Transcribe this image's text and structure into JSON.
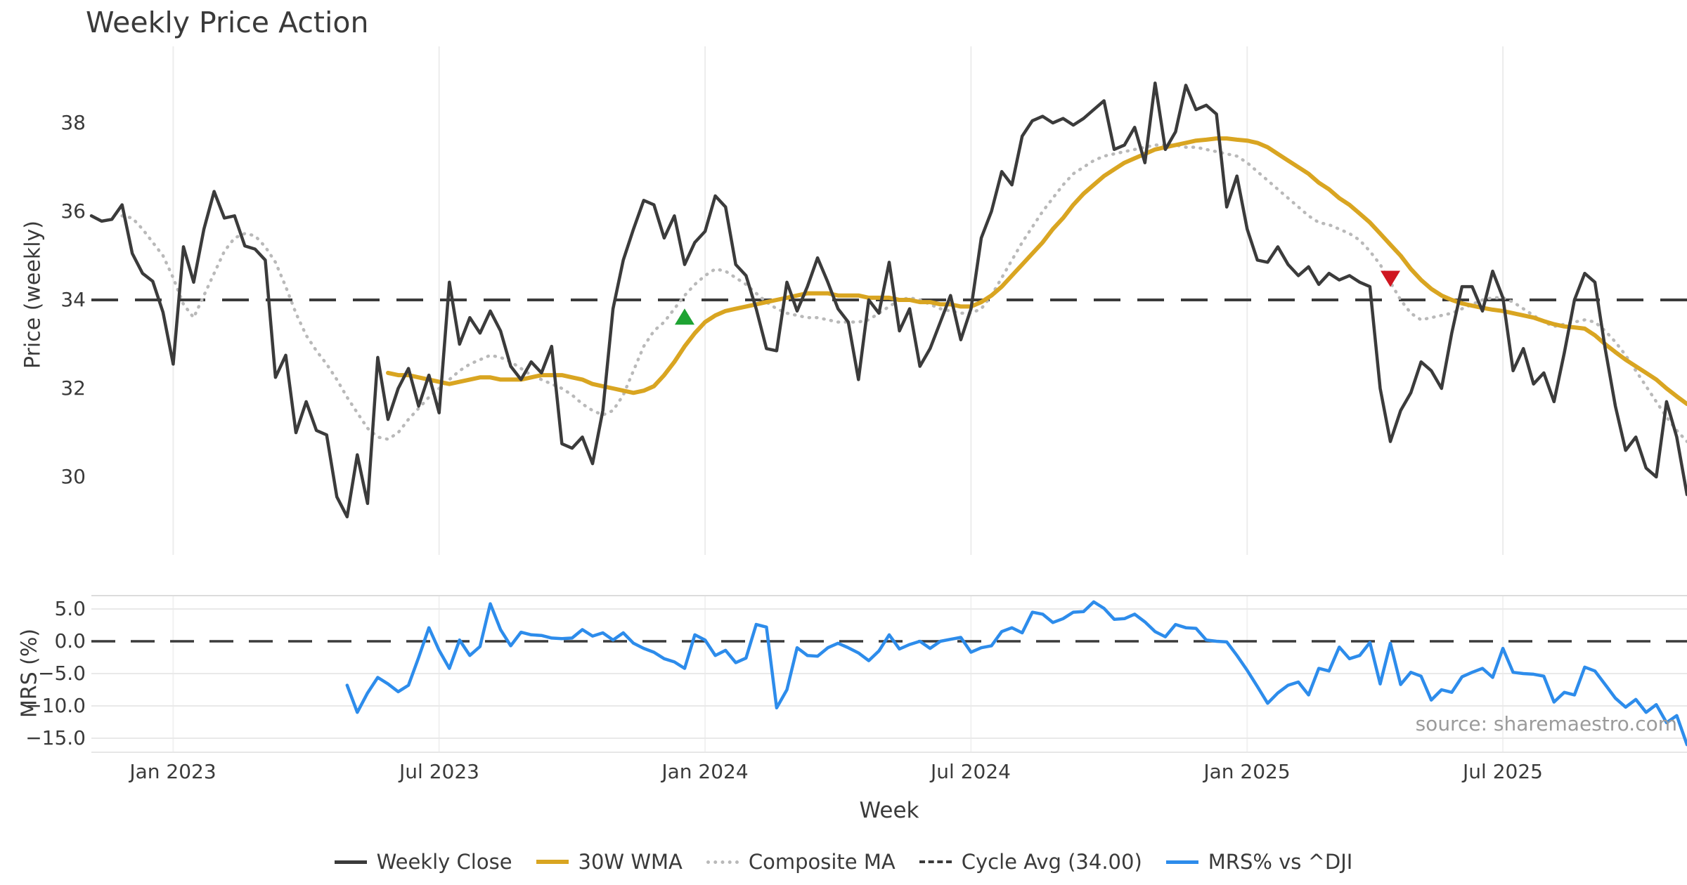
{
  "title": "Weekly Price Action",
  "axes": {
    "price": {
      "label": "Price (weekly)",
      "tick_labels": [
        "38",
        "36",
        "34",
        "32",
        "30"
      ],
      "tick_values": [
        38,
        36,
        34,
        32,
        30
      ]
    },
    "mrs": {
      "label": "MRS (%)",
      "tick_labels": [
        "5.0",
        "0.0",
        "−5.0",
        "−10.0",
        "−15.0"
      ],
      "tick_values": [
        5,
        0,
        -5,
        -10,
        -15
      ]
    },
    "x": {
      "label": "Week",
      "tick_labels": [
        "Jan 2023",
        "Jul 2023",
        "Jan 2024",
        "Jul 2024",
        "Jan 2025",
        "Jul 2025"
      ]
    }
  },
  "legend": {
    "weekly_close": "Weekly Close",
    "wma": "30W WMA",
    "composite": "Composite MA",
    "cycle_avg": "Cycle Avg (34.00)",
    "mrs": "MRS% vs ^DJI"
  },
  "source_note": "source: sharemaestro.com",
  "colors": {
    "close": "#3b3b3b",
    "wma": "#d9a521",
    "composite": "#b9b9b9",
    "cycle": "#3b3b3b",
    "mrs": "#2d8ceb",
    "buy": "#1ea332",
    "sell": "#cf1620",
    "grid": "#ececec",
    "grid_lower": "#f1f1f1",
    "hgrid_lower": "#e9e9e9",
    "spine": "#dcdcdc",
    "text": "#3a3a3a",
    "muted": "#9b9b9b"
  },
  "chart_data": [
    {
      "type": "line",
      "title": "Weekly Price Action",
      "xlabel": "Week",
      "ylabel": "Price (weekly)",
      "x_unit": "week index (week 0 ≈ mid-Nov 2022, 157 weekly points)",
      "x_ticks": [
        {
          "week": 8,
          "label": "Jan 2023"
        },
        {
          "week": 34,
          "label": "Jul 2023"
        },
        {
          "week": 60,
          "label": "Jan 2024"
        },
        {
          "week": 86,
          "label": "Jul 2024"
        },
        {
          "week": 113,
          "label": "Jan 2025"
        },
        {
          "week": 138,
          "label": "Jul 2025"
        }
      ],
      "ylim": [
        28.2,
        39.7
      ],
      "y_ticks": [
        30,
        32,
        34,
        36,
        38
      ],
      "grid": "vertical-only",
      "legend_position": "bottom-center",
      "series": [
        {
          "name": "Weekly Close",
          "style": "solid",
          "color": "#3b3b3b",
          "start_week": 0,
          "values": [
            35.9,
            35.78,
            35.82,
            36.15,
            35.05,
            34.6,
            34.42,
            33.72,
            32.55,
            35.2,
            34.4,
            35.6,
            36.45,
            35.85,
            35.9,
            35.22,
            35.15,
            34.9,
            32.25,
            32.75,
            31.0,
            31.7,
            31.05,
            30.95,
            29.55,
            29.1,
            30.5,
            29.4,
            32.7,
            31.3,
            32.0,
            32.45,
            31.6,
            32.3,
            31.45,
            34.4,
            33.0,
            33.6,
            33.25,
            33.75,
            33.3,
            32.5,
            32.2,
            32.6,
            32.35,
            32.95,
            30.75,
            30.65,
            30.9,
            30.3,
            31.5,
            33.8,
            34.9,
            35.6,
            36.25,
            36.15,
            35.4,
            35.9,
            34.8,
            35.3,
            35.55,
            36.35,
            36.1,
            34.8,
            34.55,
            33.8,
            32.9,
            32.85,
            34.4,
            33.75,
            34.3,
            34.95,
            34.4,
            33.8,
            33.5,
            32.2,
            34.0,
            33.7,
            34.85,
            33.3,
            33.8,
            32.5,
            32.9,
            33.5,
            34.1,
            33.1,
            33.8,
            35.4,
            36.0,
            36.9,
            36.6,
            37.7,
            38.05,
            38.15,
            38.0,
            38.1,
            37.95,
            38.1,
            38.3,
            38.5,
            37.4,
            37.5,
            37.9,
            37.1,
            38.9,
            37.4,
            37.8,
            38.85,
            38.3,
            38.4,
            38.2,
            36.1,
            36.8,
            35.6,
            34.9,
            34.85,
            35.2,
            34.8,
            34.55,
            34.75,
            34.35,
            34.6,
            34.45,
            34.55,
            34.4,
            34.3,
            32.0,
            30.8,
            31.5,
            31.9,
            32.6,
            32.4,
            32.0,
            33.25,
            34.3,
            34.3,
            33.75,
            34.65,
            34.05,
            32.4,
            32.9,
            32.1,
            32.35,
            31.7,
            32.8,
            34.0,
            34.6,
            34.4,
            32.9,
            31.6,
            30.6,
            30.9,
            30.2,
            30.0,
            31.7,
            30.9,
            29.6
          ]
        },
        {
          "name": "30W WMA",
          "style": "solid",
          "color": "#d9a521",
          "start_week": 29,
          "values": [
            32.35,
            32.3,
            32.3,
            32.25,
            32.2,
            32.15,
            32.1,
            32.15,
            32.2,
            32.25,
            32.25,
            32.2,
            32.2,
            32.2,
            32.25,
            32.3,
            32.3,
            32.3,
            32.25,
            32.2,
            32.1,
            32.05,
            32.0,
            31.95,
            31.9,
            31.95,
            32.05,
            32.3,
            32.6,
            32.95,
            33.25,
            33.5,
            33.65,
            33.75,
            33.8,
            33.85,
            33.9,
            33.95,
            34.0,
            34.05,
            34.1,
            34.15,
            34.15,
            34.15,
            34.1,
            34.1,
            34.1,
            34.05,
            34.05,
            34.05,
            34.0,
            34.0,
            33.95,
            33.95,
            33.9,
            33.9,
            33.85,
            33.85,
            33.95,
            34.1,
            34.3,
            34.55,
            34.8,
            35.05,
            35.3,
            35.6,
            35.85,
            36.15,
            36.4,
            36.6,
            36.8,
            36.95,
            37.1,
            37.2,
            37.3,
            37.4,
            37.45,
            37.5,
            37.55,
            37.6,
            37.62,
            37.65,
            37.65,
            37.62,
            37.6,
            37.55,
            37.45,
            37.3,
            37.15,
            37.0,
            36.85,
            36.65,
            36.5,
            36.3,
            36.15,
            35.95,
            35.75,
            35.5,
            35.25,
            35.0,
            34.7,
            34.45,
            34.25,
            34.1,
            34.0,
            33.92,
            33.87,
            33.82,
            33.78,
            33.75,
            33.7,
            33.65,
            33.6,
            33.52,
            33.45,
            33.4,
            33.38,
            33.35,
            33.2,
            33.0,
            32.82,
            32.65,
            32.5,
            32.35,
            32.2,
            32.0,
            31.82,
            31.65
          ]
        },
        {
          "name": "Composite MA",
          "style": "dotted",
          "color": "#b9b9b9",
          "start_week": 3,
          "values": [
            35.9,
            35.85,
            35.6,
            35.3,
            35.0,
            34.5,
            33.9,
            33.6,
            34.1,
            34.6,
            35.1,
            35.4,
            35.5,
            35.45,
            35.2,
            34.85,
            34.3,
            33.7,
            33.2,
            32.85,
            32.55,
            32.2,
            31.8,
            31.45,
            31.1,
            30.9,
            30.85,
            31.0,
            31.3,
            31.55,
            31.8,
            32.0,
            32.2,
            32.4,
            32.55,
            32.65,
            32.75,
            32.7,
            32.6,
            32.45,
            32.3,
            32.2,
            32.1,
            32.0,
            31.85,
            31.65,
            31.5,
            31.4,
            31.5,
            31.85,
            32.4,
            32.95,
            33.3,
            33.5,
            33.8,
            34.1,
            34.35,
            34.55,
            34.7,
            34.65,
            34.5,
            34.35,
            34.15,
            33.95,
            33.8,
            33.7,
            33.65,
            33.6,
            33.6,
            33.55,
            33.5,
            33.5,
            33.5,
            33.55,
            33.7,
            33.85,
            34.0,
            34.05,
            34.0,
            33.9,
            33.8,
            33.75,
            33.7,
            33.7,
            33.8,
            34.1,
            34.5,
            34.9,
            35.3,
            35.65,
            36.0,
            36.3,
            36.6,
            36.85,
            37.0,
            37.15,
            37.25,
            37.3,
            37.35,
            37.4,
            37.45,
            37.5,
            37.5,
            37.5,
            37.45,
            37.45,
            37.4,
            37.35,
            37.3,
            37.25,
            37.1,
            36.9,
            36.7,
            36.5,
            36.3,
            36.1,
            35.9,
            35.75,
            35.7,
            35.6,
            35.5,
            35.35,
            35.1,
            34.8,
            34.4,
            34.0,
            33.7,
            33.55,
            33.6,
            33.65,
            33.7,
            33.8,
            33.9,
            34.0,
            34.05,
            34.05,
            33.95,
            33.8,
            33.65,
            33.5,
            33.4,
            33.45,
            33.5,
            33.55,
            33.5,
            33.3,
            33.05,
            32.75,
            32.4,
            32.05,
            31.7,
            31.35,
            31.05,
            30.8
          ]
        },
        {
          "name": "Cycle Avg (34.00)",
          "style": "dashed",
          "color": "#3b3b3b",
          "constant": 34.0
        }
      ],
      "markers": [
        {
          "name": "buy-signal",
          "shape": "triangle-up",
          "color": "#1ea332",
          "week": 58,
          "price": 33.6
        },
        {
          "name": "sell-signal",
          "shape": "triangle-down",
          "color": "#cf1620",
          "week": 127,
          "price": 34.5
        }
      ]
    },
    {
      "type": "line",
      "ylabel": "MRS (%)",
      "ylim": [
        -17.2,
        7.1
      ],
      "y_ticks": [
        5,
        0,
        -5,
        -10,
        -15
      ],
      "zero_line": {
        "style": "dashed",
        "value": 0
      },
      "series": [
        {
          "name": "MRS% vs ^DJI",
          "style": "solid",
          "color": "#2d8ceb",
          "start_week": 25,
          "values": [
            -6.8,
            -11.0,
            -8.0,
            -5.6,
            -6.6,
            -7.8,
            -6.8,
            -2.5,
            2.1,
            -1.4,
            -4.2,
            0.2,
            -2.2,
            -0.8,
            5.8,
            1.8,
            -0.7,
            1.4,
            1.0,
            0.9,
            0.5,
            0.4,
            0.5,
            1.8,
            0.8,
            1.3,
            0.2,
            1.3,
            -0.3,
            -1.1,
            -1.7,
            -2.7,
            -3.2,
            -4.2,
            1.0,
            0.2,
            -2.2,
            -1.4,
            -3.3,
            -2.6,
            2.6,
            2.2,
            -10.3,
            -7.5,
            -1.0,
            -2.2,
            -2.3,
            -1.0,
            -0.3,
            -1.0,
            -1.8,
            -3.0,
            -1.5,
            1.0,
            -1.2,
            -0.5,
            0.0,
            -1.1,
            0.0,
            0.3,
            0.6,
            -1.7,
            -1.0,
            -0.7,
            1.5,
            2.1,
            1.3,
            4.5,
            4.2,
            2.9,
            3.5,
            4.5,
            4.6,
            6.1,
            5.1,
            3.4,
            3.5,
            4.2,
            3.0,
            1.5,
            0.7,
            2.6,
            2.1,
            2.0,
            0.2,
            0.0,
            -0.1,
            -2.2,
            -4.5,
            -7.0,
            -9.6,
            -8.0,
            -6.8,
            -6.3,
            -8.3,
            -4.2,
            -4.6,
            -0.9,
            -2.7,
            -2.2,
            -0.2,
            -6.6,
            -0.3,
            -6.7,
            -4.8,
            -5.4,
            -9.1,
            -7.5,
            -7.9,
            -5.5,
            -4.8,
            -4.2,
            -5.6,
            -1.1,
            -4.8,
            -5.0,
            -5.1,
            -5.4,
            -9.4,
            -7.9,
            -8.3,
            -4.0,
            -4.6,
            -6.7,
            -8.8,
            -10.2,
            -9.0,
            -11.0,
            -9.8,
            -12.6,
            -11.5,
            -16.0
          ]
        }
      ]
    }
  ]
}
